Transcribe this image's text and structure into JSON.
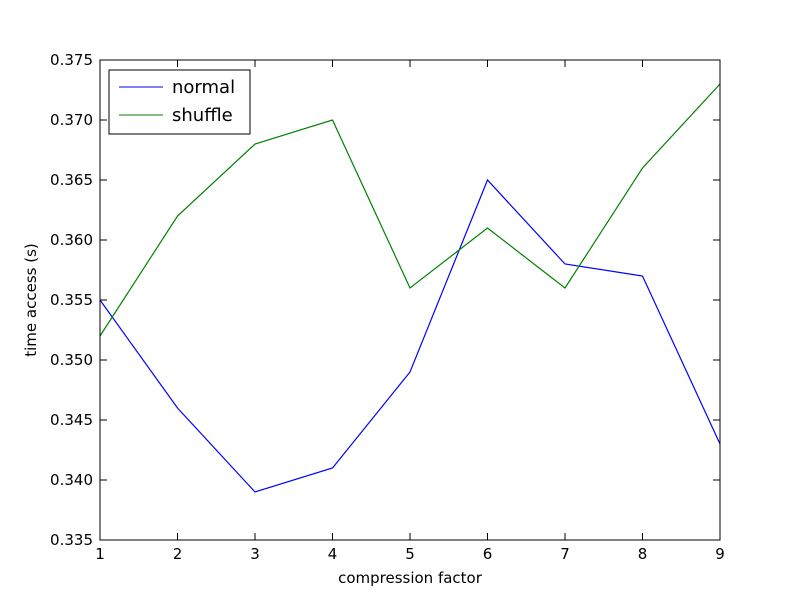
{
  "chart_data": {
    "type": "line",
    "title": "",
    "xlabel": "compression factor",
    "ylabel": "time access (s)",
    "x": [
      1,
      2,
      3,
      4,
      5,
      6,
      7,
      8,
      9
    ],
    "xlim": [
      1,
      9
    ],
    "ylim": [
      0.335,
      0.375
    ],
    "x_ticks": [
      "1",
      "2",
      "3",
      "4",
      "5",
      "6",
      "7",
      "8",
      "9"
    ],
    "y_ticks": [
      "0.335",
      "0.340",
      "0.345",
      "0.350",
      "0.355",
      "0.360",
      "0.365",
      "0.370",
      "0.375"
    ],
    "grid": false,
    "legend_position": "top-left",
    "series": [
      {
        "name": "normal",
        "color": "#0000ff",
        "values": [
          0.355,
          0.346,
          0.339,
          0.341,
          0.349,
          0.365,
          0.358,
          0.357,
          0.343
        ]
      },
      {
        "name": "shuffle",
        "color": "#008000",
        "values": [
          0.352,
          0.362,
          0.368,
          0.37,
          0.356,
          0.361,
          0.356,
          0.366,
          0.373
        ]
      }
    ]
  }
}
